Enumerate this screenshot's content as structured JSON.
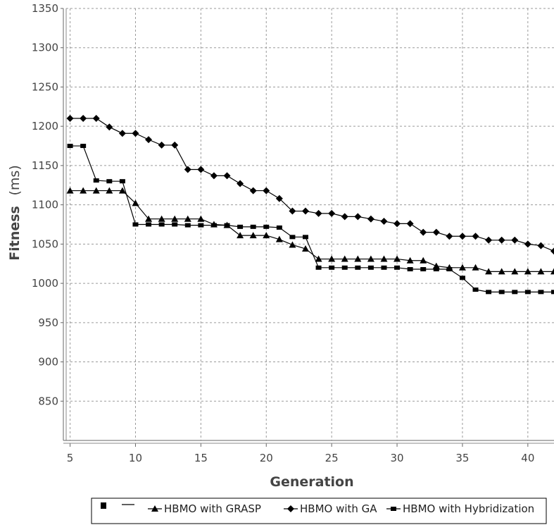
{
  "chart_data": {
    "type": "line",
    "xlabel": "Generation",
    "ylabel": "Fitness",
    "ylabel_unit": "(ms)",
    "xlim": [
      4.7,
      42
    ],
    "ylim": [
      800,
      1350
    ],
    "x_ticks": [
      5,
      10,
      15,
      20,
      25,
      30,
      35,
      40
    ],
    "y_ticks": [
      850,
      900,
      950,
      1000,
      1050,
      1100,
      1150,
      1200,
      1250,
      1300,
      1350
    ],
    "grid": true,
    "legend_position": "bottom-center",
    "x": [
      5,
      6,
      7,
      8,
      9,
      10,
      11,
      12,
      13,
      14,
      15,
      16,
      17,
      18,
      19,
      20,
      21,
      22,
      23,
      24,
      25,
      26,
      27,
      28,
      29,
      30,
      31,
      32,
      33,
      34,
      35,
      36,
      37,
      38,
      39,
      40,
      41,
      42
    ],
    "series": [
      {
        "name": "HBMO with GRASP",
        "marker": "triangle",
        "color": "#000000",
        "values": [
          1118,
          1118,
          1118,
          1118,
          1118,
          1102,
          1082,
          1082,
          1082,
          1082,
          1082,
          1075,
          1074,
          1061,
          1061,
          1061,
          1056,
          1049,
          1044,
          1031,
          1031,
          1031,
          1031,
          1031,
          1031,
          1031,
          1029,
          1029,
          1022,
          1020,
          1020,
          1020,
          1015,
          1015,
          1015,
          1015,
          1015,
          1015
        ]
      },
      {
        "name": "HBMO with GA",
        "marker": "diamond",
        "color": "#000000",
        "values": [
          1210,
          1210,
          1210,
          1199,
          1191,
          1191,
          1183,
          1176,
          1176,
          1145,
          1145,
          1137,
          1137,
          1127,
          1118,
          1118,
          1108,
          1092,
          1092,
          1089,
          1089,
          1085,
          1085,
          1082,
          1079,
          1076,
          1076,
          1065,
          1065,
          1060,
          1060,
          1060,
          1055,
          1055,
          1055,
          1050,
          1048,
          1041
        ]
      },
      {
        "name": "HBMO with Hybridization",
        "marker": "square",
        "color": "#000000",
        "values": [
          1175,
          1175,
          1131,
          1130,
          1130,
          1075,
          1075,
          1075,
          1075,
          1074,
          1074,
          1074,
          1074,
          1072,
          1072,
          1072,
          1071,
          1059,
          1059,
          1020,
          1020,
          1020,
          1020,
          1020,
          1020,
          1020,
          1018,
          1018,
          1018,
          1018,
          1007,
          992,
          989,
          989,
          989,
          989,
          989,
          989
        ]
      }
    ]
  }
}
